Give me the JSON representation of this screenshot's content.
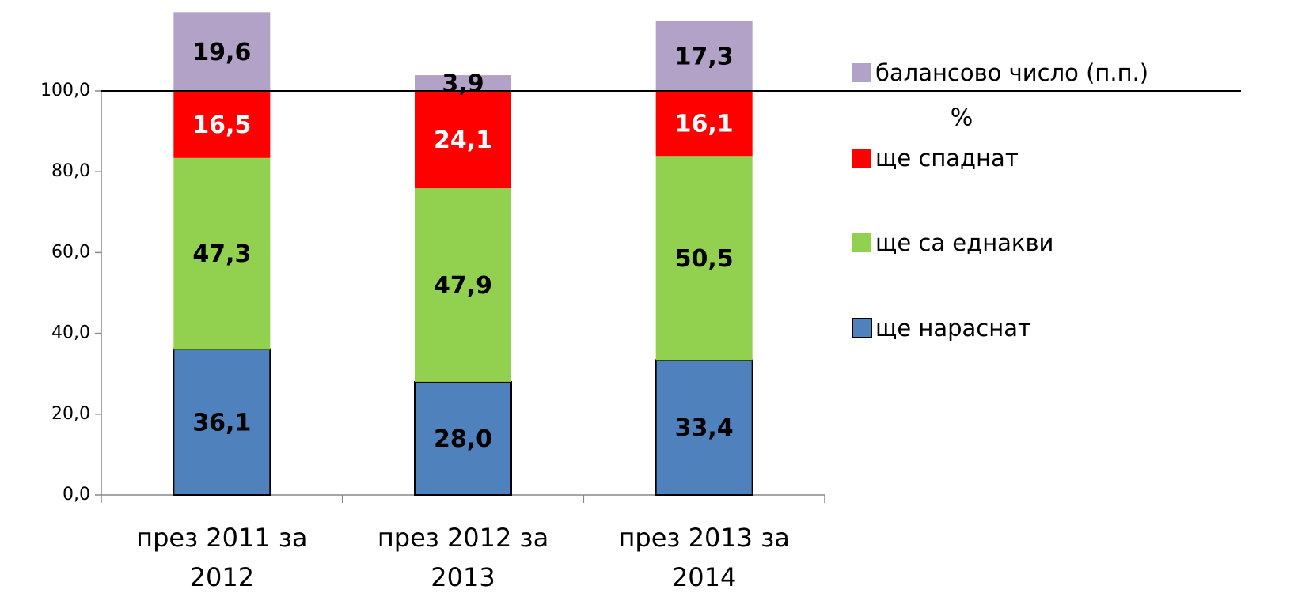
{
  "chart_data": {
    "type": "stacked_bar",
    "y_label": "%",
    "categories": [
      "през 2011 за 2012",
      "през 2012 за 2013",
      "през 2013 за 2014"
    ],
    "series": [
      {
        "name": "ще нараснат",
        "color": "#4f81bd",
        "values": [
          36.1,
          28.0,
          33.4
        ],
        "value_labels": [
          "36,1",
          "28,0",
          "33,4"
        ]
      },
      {
        "name": "ще са еднакви",
        "color": "#92d050",
        "values": [
          47.3,
          47.9,
          50.5
        ],
        "value_labels": [
          "47,3",
          "47,9",
          "50,5"
        ]
      },
      {
        "name": "ще спаднат",
        "color": "#ff0000",
        "values": [
          16.5,
          24.1,
          16.1
        ],
        "value_labels": [
          "16,5",
          "24,1",
          "16,1"
        ]
      },
      {
        "name": "балансово число (п.п.)",
        "color": "#b3a2c7",
        "values": [
          19.6,
          3.9,
          17.3
        ],
        "value_labels": [
          "19,6",
          "3,9",
          "17,3"
        ]
      }
    ],
    "ylim": [
      0,
      122.5
    ],
    "yticks": [
      {
        "value": 0,
        "label": "0,0"
      },
      {
        "value": 20,
        "label": "20,0"
      },
      {
        "value": 40,
        "label": "40,0"
      },
      {
        "value": 60,
        "label": "60,0"
      },
      {
        "value": 80,
        "label": "80,0"
      },
      {
        "value": 100,
        "label": "100,0"
      }
    ],
    "legend": "right"
  }
}
